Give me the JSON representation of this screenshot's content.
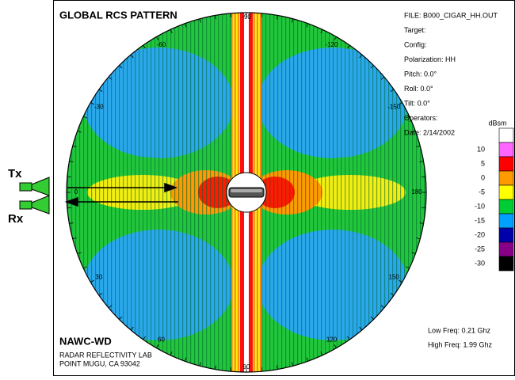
{
  "title": "GLOBAL RCS PATTERN",
  "info": [
    "FILE: B000_CIGAR_HH.OUT",
    "Target:",
    "Config:",
    "Polarization: HH",
    "Pitch: 0.0°",
    "Roll: 0.0°",
    "Tilt: 0.0°",
    "Operators:",
    "Date: 2/14/2002"
  ],
  "angle_labels": [
    -90,
    -120,
    -150,
    180,
    150,
    120,
    90,
    60,
    30,
    0,
    -30,
    -60
  ],
  "colorbar": {
    "unit": "dBsm",
    "ticks": [
      10,
      5,
      0,
      -5,
      -10,
      -15,
      -20,
      -25,
      -30
    ],
    "colors": [
      "#ffffff",
      "#ff66ff",
      "#ff0000",
      "#ff9900",
      "#ffff00",
      "#00cc33",
      "#00a0ff",
      "#0000aa",
      "#880088",
      "#000000"
    ]
  },
  "tx": "Tx",
  "rx": "Rx",
  "lab": [
    "NAWC-WD",
    "RADAR REFLECTIVITY LAB",
    "POINT MUGU, CA 93042"
  ],
  "freq": [
    "Low Freq: 0.21 Ghz",
    "High Freq: 1.99 Ghz"
  ]
}
